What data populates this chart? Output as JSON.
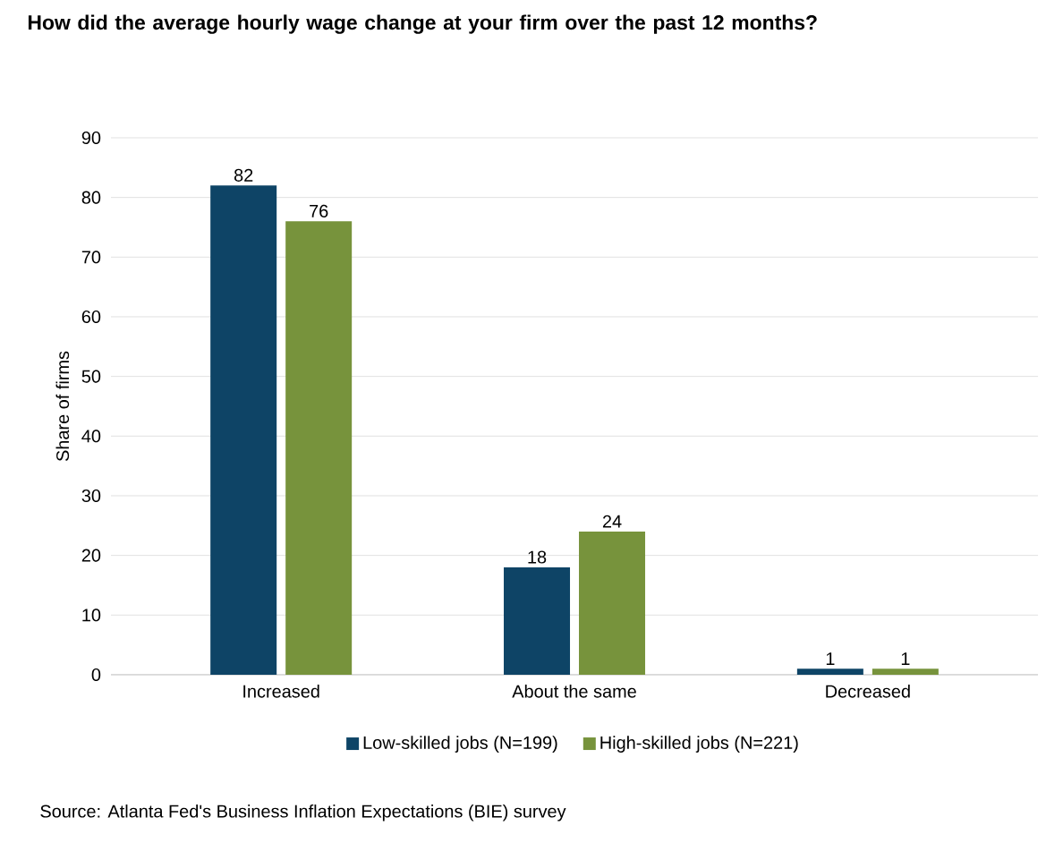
{
  "chart_data": {
    "type": "bar",
    "title": "How did the average hourly wage change at your firm over the past 12 months?",
    "ylabel": "Share of firms",
    "categories": [
      "Increased",
      "About the same",
      "Decreased"
    ],
    "series": [
      {
        "name": "Low-skilled jobs (N=199)",
        "color": "#0e4466",
        "values": [
          82,
          18,
          1
        ]
      },
      {
        "name": "High-skilled jobs (N=221)",
        "color": "#77933c",
        "values": [
          76,
          24,
          1
        ]
      }
    ],
    "ylim": [
      0,
      90
    ],
    "yticks": [
      0,
      10,
      20,
      30,
      40,
      50,
      60,
      70,
      80,
      90
    ],
    "grid": "y",
    "legend": "bottom",
    "data_labels": true,
    "annotations": [
      "Source: Atlanta Fed's Business Inflation Expectations (BIE) survey"
    ]
  }
}
